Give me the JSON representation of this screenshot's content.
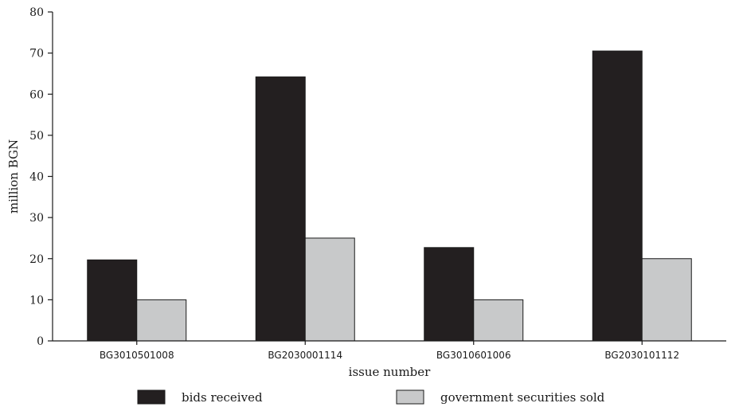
{
  "chart_data": {
    "type": "bar",
    "xlabel": "issue number",
    "ylabel": "million BGN",
    "ylim": [
      0,
      80
    ],
    "yticks": [
      0,
      10,
      20,
      30,
      40,
      50,
      60,
      70,
      80
    ],
    "categories": [
      "BG3010501008",
      "BG2030001114",
      "BG3010601006",
      "BG2030101112"
    ],
    "series": [
      {
        "name": "bids received",
        "color": "#231f20",
        "values": [
          19.7,
          64.2,
          22.7,
          70.5
        ]
      },
      {
        "name": "government securities sold",
        "color": "#c8c9ca",
        "values": [
          10.0,
          25.0,
          10.0,
          20.0
        ]
      }
    ],
    "grid": false,
    "legend_position": "bottom"
  }
}
